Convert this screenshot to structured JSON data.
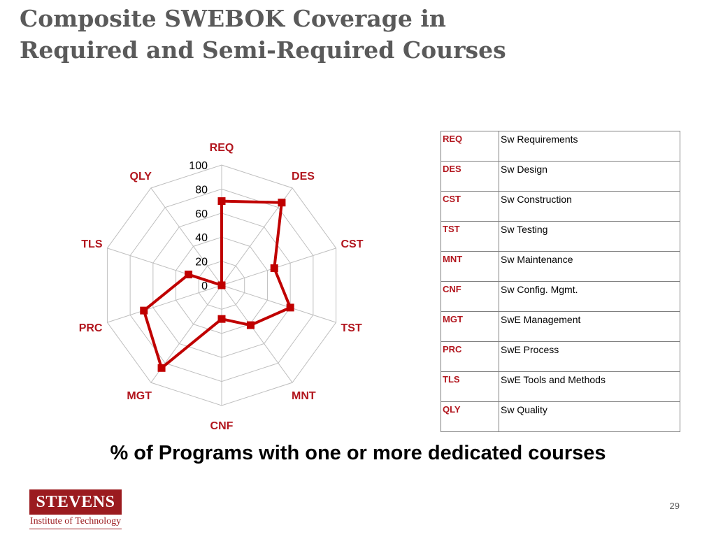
{
  "title": {
    "line1": "Composite SWEBOK Coverage in",
    "line2": "Required and Semi-Required Courses"
  },
  "chart_data": {
    "type": "radar",
    "categories": [
      "REQ",
      "DES",
      "CST",
      "TST",
      "MNT",
      "CNF",
      "MGT",
      "PRC",
      "TLS",
      "QLY"
    ],
    "values": [
      70,
      85,
      46,
      60,
      41,
      28,
      85,
      68,
      29,
      0
    ],
    "rlim": [
      0,
      100
    ],
    "ticks": [
      "0",
      "20",
      "40",
      "60",
      "80",
      "100"
    ],
    "grid": true,
    "series_color": "#c00000",
    "grid_color": "#bfbfbf",
    "category_color": "#b2161e"
  },
  "legend_table": [
    {
      "abbr": "REQ",
      "name": "Sw Requirements"
    },
    {
      "abbr": "DES",
      "name": "Sw Design"
    },
    {
      "abbr": "CST",
      "name": "Sw Construction"
    },
    {
      "abbr": "TST",
      "name": "Sw Testing"
    },
    {
      "abbr": "MNT",
      "name": "Sw Maintenance"
    },
    {
      "abbr": "CNF",
      "name": "Sw Config. Mgmt."
    },
    {
      "abbr": "MGT",
      "name": "SwE Management"
    },
    {
      "abbr": "PRC",
      "name": "SwE Process"
    },
    {
      "abbr": "TLS",
      "name": "SwE Tools and Methods"
    },
    {
      "abbr": "QLY",
      "name": "Sw Quality"
    }
  ],
  "caption": "% of Programs with one or more dedicated courses",
  "logo": {
    "name": "STEVENS",
    "subtitle": "Institute of Technology"
  },
  "page_number": "29"
}
